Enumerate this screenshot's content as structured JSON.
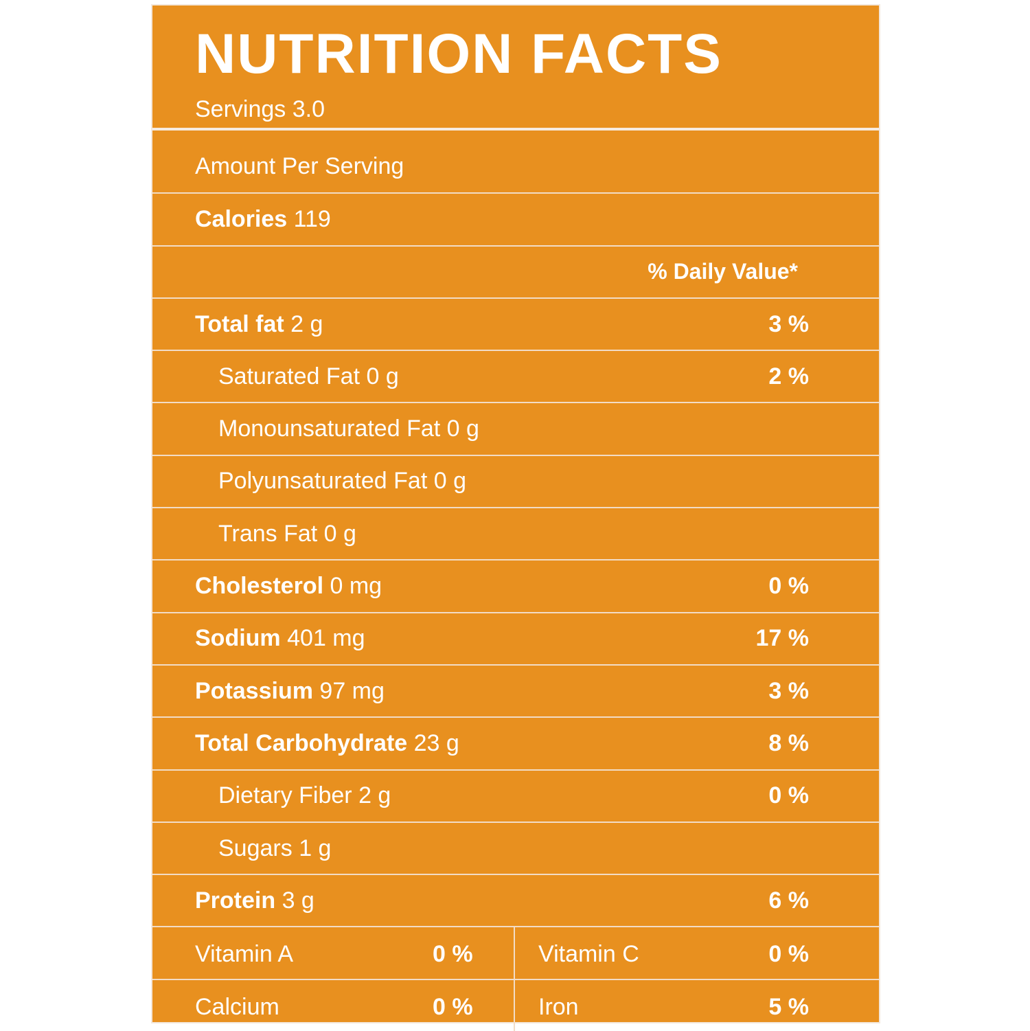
{
  "header": {
    "title": "NUTRITION FACTS",
    "servings": "Servings 3.0"
  },
  "amount_per_serving": "Amount Per Serving",
  "calories": {
    "label": "Calories",
    "value": "119"
  },
  "daily_value_header": "% Daily Value*",
  "nutrients": [
    {
      "label": "Total fat",
      "amount": "2 g",
      "dv": "3 %"
    },
    {
      "label": "Saturated Fat",
      "amount": "0 g",
      "dv": "2 %"
    },
    {
      "label": "Monounsaturated Fat",
      "amount": "0 g",
      "dv": ""
    },
    {
      "label": "Polyunsaturated Fat",
      "amount": "0 g",
      "dv": ""
    },
    {
      "label": "Trans Fat",
      "amount": "0 g",
      "dv": ""
    },
    {
      "label": "Cholesterol",
      "amount": "0 mg",
      "dv": "0 %"
    },
    {
      "label": "Sodium",
      "amount": "401 mg",
      "dv": "17 %"
    },
    {
      "label": "Potassium",
      "amount": "97 mg",
      "dv": "3 %"
    },
    {
      "label": "Total Carbohydrate",
      "amount": "23 g",
      "dv": "8 %"
    },
    {
      "label": "Dietary Fiber",
      "amount": "2 g",
      "dv": "0 %"
    },
    {
      "label": "Sugars",
      "amount": "1 g",
      "dv": ""
    },
    {
      "label": "Protein",
      "amount": "3 g",
      "dv": "6 %"
    }
  ],
  "vitamins": [
    {
      "name1": "Vitamin A",
      "pct1": "0 %",
      "name2": "Vitamin C",
      "pct2": "0 %"
    },
    {
      "name1": "Calcium",
      "pct1": "0 %",
      "name2": "Iron",
      "pct2": "5 %"
    }
  ],
  "colors": {
    "background": "#e8901f",
    "text": "#ffffff",
    "lines": "#f2dcc6"
  }
}
